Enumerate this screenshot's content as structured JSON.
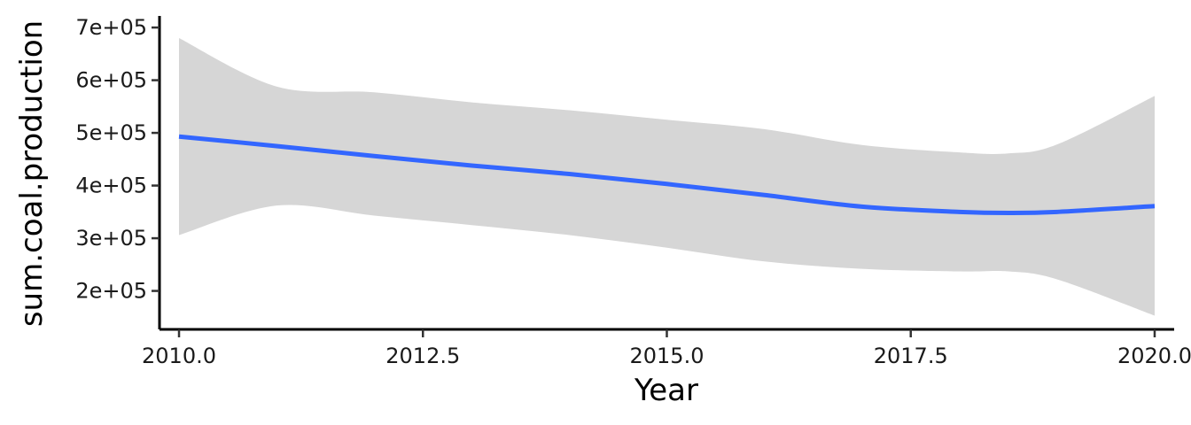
{
  "chart_data": {
    "type": "line",
    "title": "",
    "xlabel": "Year",
    "ylabel": "sum.coal.production",
    "xlim": [
      2009.8,
      2020.2
    ],
    "ylim": [
      127000,
      722000
    ],
    "x_ticks": [
      2010,
      2012.5,
      2015,
      2017.5,
      2020
    ],
    "x_tick_labels": [
      "2010.0",
      "2012.5",
      "2015.0",
      "2017.5",
      "2020.0"
    ],
    "y_ticks": [
      200000,
      300000,
      400000,
      500000,
      600000,
      700000
    ],
    "y_tick_labels": [
      "2e+05",
      "3e+05",
      "4e+05",
      "5e+05",
      "6e+05",
      "7e+05"
    ],
    "grid": false,
    "legend": "none",
    "colors": {
      "line": "#3366ff",
      "band": "#d6d6d6",
      "axis": "#000000"
    },
    "series": [
      {
        "x": [
          2010,
          2011,
          2012,
          2013,
          2014,
          2015,
          2016,
          2017,
          2018,
          2018.5,
          2019,
          2020
        ],
        "y": [
          493000,
          475000,
          456000,
          438000,
          422000,
          403000,
          382000,
          360000,
          350000,
          348000,
          350000,
          361000
        ],
        "lower": [
          306000,
          362000,
          343000,
          325000,
          306000,
          282000,
          256000,
          242000,
          237000,
          237000,
          222000,
          153000
        ],
        "upper": [
          680000,
          588000,
          577000,
          558000,
          543000,
          525000,
          507000,
          477000,
          463000,
          461000,
          478000,
          570000
        ]
      }
    ]
  }
}
